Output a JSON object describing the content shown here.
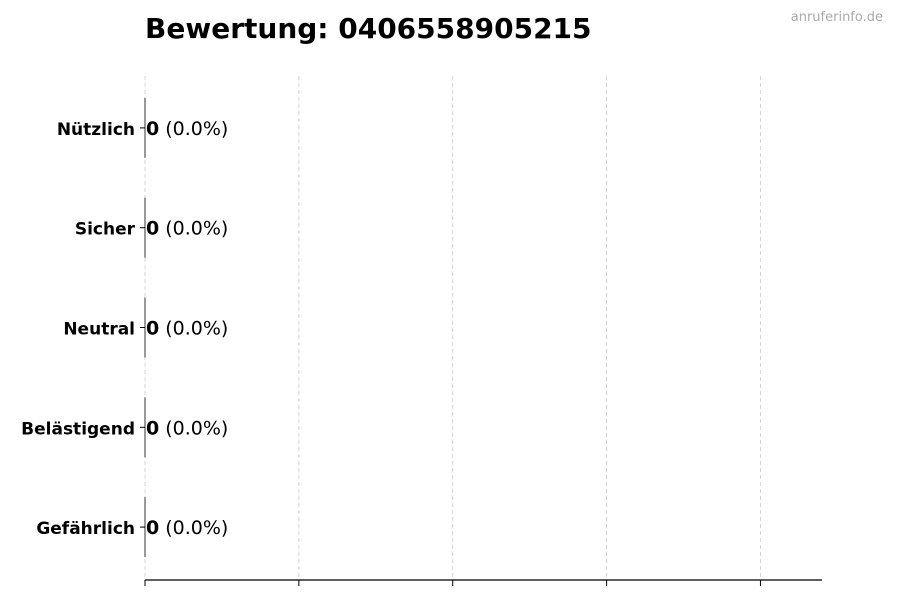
{
  "watermark": "anruferinfo.de",
  "chart_data": {
    "type": "bar",
    "orientation": "horizontal",
    "title": "Bewertung: 04065589052​15",
    "categories": [
      "Nützlich",
      "Sicher",
      "Neutral",
      "Belästigend",
      "Gefährlich"
    ],
    "values": [
      0,
      0,
      0,
      0,
      0
    ],
    "data_labels": [
      {
        "count": "0",
        "percent": "(0.0%)"
      },
      {
        "count": "0",
        "percent": "(0.0%)"
      },
      {
        "count": "0",
        "percent": "(0.0%)"
      },
      {
        "count": "0",
        "percent": "(0.0%)"
      },
      {
        "count": "0",
        "percent": "(0.0%)"
      }
    ],
    "xlabel": "",
    "ylabel": "",
    "xlim": [
      0,
      4.4
    ],
    "xticks": [
      0,
      1,
      2,
      3,
      4
    ],
    "xtick_labels_shown": false,
    "grid": "x, dashed",
    "colors": {
      "bar": "#000000",
      "grid": "#cccccc",
      "axis": "#000000"
    }
  }
}
